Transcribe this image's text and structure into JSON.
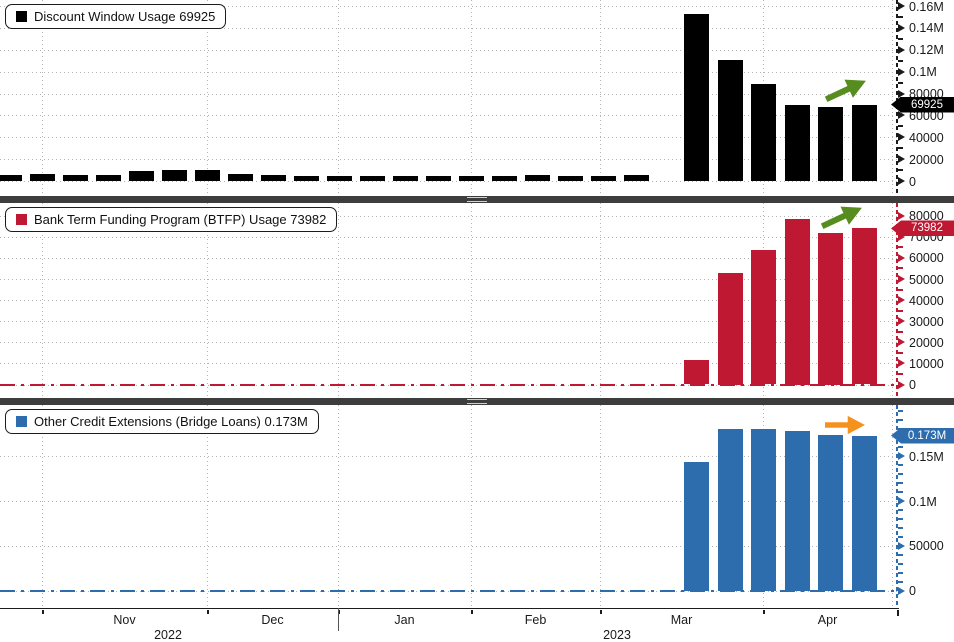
{
  "chart_data": [
    {
      "type": "bar",
      "series_name": "Discount Window Usage",
      "legend_label": "Discount Window Usage 69925",
      "current_value": 69925,
      "current_value_label": "69925",
      "bar_color": "#000000",
      "axis_color": "#1a1a1a",
      "trend_arrow": "up-right",
      "arrow_color": "#578c1f",
      "ylim": [
        0,
        164500
      ],
      "grid": true,
      "legend_position": "top-left",
      "minor_step": 10000,
      "zero_line_dash": false,
      "y_ticks": [
        {
          "v": 0,
          "label": "0"
        },
        {
          "v": 20000,
          "label": "20000"
        },
        {
          "v": 40000,
          "label": "40000"
        },
        {
          "v": 60000,
          "label": "60000"
        },
        {
          "v": 80000,
          "label": "80000"
        },
        {
          "v": 100000,
          "label": "0.1M"
        },
        {
          "v": 120000,
          "label": "0.12M"
        },
        {
          "v": 140000,
          "label": "0.14M"
        },
        {
          "v": 160000,
          "label": "0.16M"
        }
      ],
      "values": [
        5500,
        6000,
        5200,
        5600,
        9200,
        10500,
        10000,
        6800,
        5200,
        4600,
        4500,
        5000,
        4800,
        4500,
        4600,
        4800,
        5200,
        4700,
        5000,
        5500,
        152900,
        110200,
        88400,
        69700,
        67600,
        69925
      ]
    },
    {
      "type": "bar",
      "series_name": "Bank Term Funding Program (BTFP) Usage",
      "legend_label": "Bank Term Funding Program (BTFP) Usage 73982",
      "current_value": 73982,
      "current_value_label": "73982",
      "bar_color": "#be1832",
      "axis_color": "#be1832",
      "trend_arrow": "up-right",
      "arrow_color": "#578c1f",
      "ylim": [
        0,
        86000
      ],
      "grid": true,
      "legend_position": "top-left",
      "minor_step": 5000,
      "zero_line_dash": true,
      "y_ticks": [
        {
          "v": 0,
          "label": "0"
        },
        {
          "v": 10000,
          "label": "10000"
        },
        {
          "v": 20000,
          "label": "20000"
        },
        {
          "v": 30000,
          "label": "30000"
        },
        {
          "v": 40000,
          "label": "40000"
        },
        {
          "v": 50000,
          "label": "50000"
        },
        {
          "v": 60000,
          "label": "60000"
        },
        {
          "v": 70000,
          "label": "70000"
        },
        {
          "v": 80000,
          "label": "80000"
        }
      ],
      "values": [
        0,
        0,
        0,
        0,
        0,
        0,
        0,
        0,
        0,
        0,
        0,
        0,
        0,
        0,
        0,
        0,
        0,
        0,
        0,
        0,
        11500,
        52800,
        63700,
        78400,
        71800,
        73982
      ]
    },
    {
      "type": "bar",
      "series_name": "Other Credit Extensions (Bridge Loans)",
      "legend_label": "Other Credit Extensions (Bridge Loans) 0.173M",
      "current_value": 173000,
      "current_value_label": "0.173M",
      "bar_color": "#2e6dad",
      "axis_color": "#2e6dad",
      "trend_arrow": "right",
      "arrow_color": "#f5921e",
      "ylim": [
        0,
        207000
      ],
      "grid": true,
      "legend_position": "top-left",
      "minor_step": 10000,
      "zero_line_dash": true,
      "y_ticks": [
        {
          "v": 0,
          "label": "0"
        },
        {
          "v": 50000,
          "label": "50000"
        },
        {
          "v": 100000,
          "label": "0.1M"
        },
        {
          "v": 150000,
          "label": "0.15M"
        }
      ],
      "values": [
        0,
        0,
        0,
        0,
        0,
        0,
        0,
        0,
        0,
        0,
        0,
        0,
        0,
        0,
        0,
        0,
        0,
        0,
        0,
        0,
        143000,
        180000,
        180000,
        177500,
        174000,
        173000
      ]
    }
  ],
  "x_axis": {
    "month_labels": [
      "Nov",
      "Dec",
      "Jan",
      "Feb",
      "Mar",
      "Apr"
    ],
    "year_labels": [
      "2022",
      "2023"
    ]
  }
}
